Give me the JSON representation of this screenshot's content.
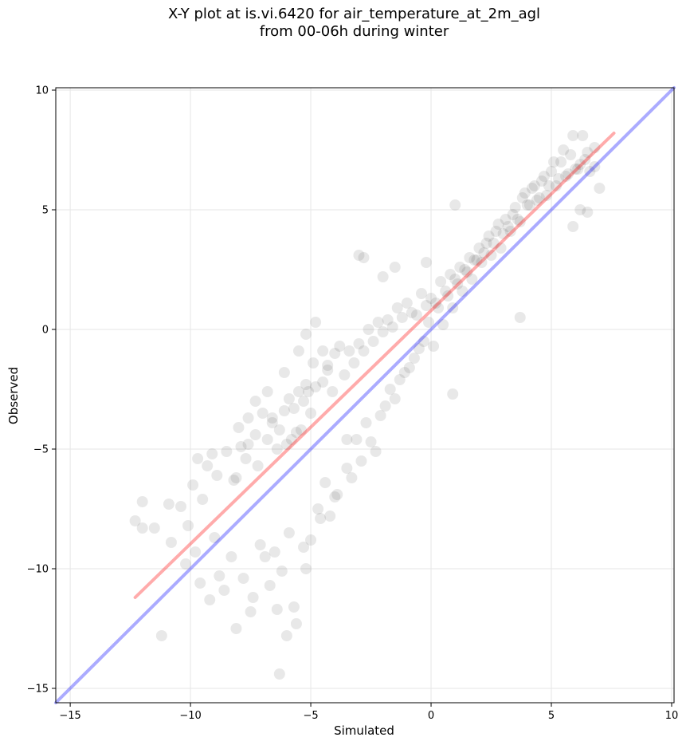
{
  "chart_data": {
    "type": "scatter",
    "title": "X-Y plot at is.vi.6420 for air_temperature_at_2m_agl",
    "subtitle": "from 00-06h during winter",
    "xlabel": "Simulated",
    "ylabel": "Observed",
    "xlim": [
      -15.6,
      10.1
    ],
    "ylim": [
      -15.6,
      10.1
    ],
    "xticks": [
      -15,
      -10,
      -5,
      0,
      5,
      10
    ],
    "yticks": [
      -15,
      -10,
      -5,
      0,
      5,
      10
    ],
    "xtick_labels": [
      "−15",
      "−10",
      "−5",
      "0",
      "5",
      "10"
    ],
    "ytick_labels": [
      "−15",
      "−10",
      "−5",
      "0",
      "5",
      "10"
    ],
    "grid": true,
    "colors": {
      "points": "#000000",
      "fit_line": "#ff0000",
      "identity_line": "#0000ff"
    },
    "fit_line": {
      "x": [
        -12.3,
        7.6
      ],
      "y": [
        -11.2,
        8.2
      ]
    },
    "identity_line": {
      "x": [
        -15.6,
        10.1
      ],
      "y": [
        -15.6,
        10.1
      ]
    },
    "series": [
      {
        "x": [
          -12.3,
          -12,
          -12,
          -11.2,
          -10.9,
          -10.4,
          -10.1,
          -9.9,
          -9.7,
          -9.5,
          -9.3,
          -9.1,
          -8.9,
          -8.5,
          -8.2,
          -8,
          -7.9,
          -7.7,
          -7.6,
          -7.3,
          -7.2,
          -7,
          -6.8,
          -6.6,
          -6.4,
          -6.3,
          -6.1,
          -6,
          -5.9,
          -5.8,
          -5.7,
          -5.6,
          -5.5,
          -5.4,
          -5.3,
          -5.2,
          -5.1,
          -5,
          -4.9,
          -4.8,
          -4.5,
          -4.3,
          -4.1,
          -4,
          -3.8,
          -3.6,
          -3.4,
          -3.2,
          -3,
          -2.8,
          -2.6,
          -2.4,
          -2.2,
          -2,
          -1.8,
          -1.6,
          -1.4,
          -1.2,
          -1,
          -0.8,
          -0.6,
          -0.4,
          -0.2,
          0,
          0.2,
          0.4,
          0.6,
          0.8,
          1,
          1.2,
          1.4,
          1.6,
          1.8,
          2,
          2.2,
          2.4,
          2.6,
          2.8,
          3,
          3.2,
          3.4,
          3.6,
          3.8,
          4,
          4.2,
          4.4,
          4.6,
          4.8,
          5,
          5.2,
          5.4,
          5.6,
          5.8,
          6,
          6.2,
          6.4,
          6.6,
          6.8,
          7,
          -11.5,
          -10.8,
          -10.2,
          -9.6,
          -9,
          -8.6,
          -8.3,
          -7.8,
          -7.4,
          -7.1,
          -6.7,
          -6.5,
          -6.2,
          -5.9,
          -5.7,
          -5.3,
          -5,
          -4.7,
          -4.4,
          -4.2,
          -3.9,
          -3.5,
          -3.1,
          -2.7,
          -2.3,
          -1.9,
          -1.5,
          -1.1,
          -0.7,
          -0.3,
          0.1,
          0.5,
          0.9,
          1.3,
          1.7,
          2.1,
          2.5,
          2.9,
          3.3,
          3.7,
          4.1,
          4.5,
          4.9,
          5.3,
          5.7,
          6.1,
          6.5,
          -9.8,
          -9.2,
          -8.8,
          -8.1,
          -7.5,
          -6.9,
          -6.4,
          -6,
          -5.6,
          -5.2,
          -4.6,
          -4,
          -3.3,
          -2.9,
          -2.5,
          -2.1,
          -1.7,
          -1.3,
          -0.9,
          -0.5,
          -0.1,
          0.3,
          0.7,
          1.1,
          1.5,
          1.9,
          2.3,
          2.7,
          3.1,
          3.5,
          3.9,
          4.3,
          4.7,
          5.1,
          5.5,
          5.9,
          6.3,
          -6.3,
          -8.1,
          -7.6,
          -7.3,
          -6.8,
          -6.6,
          -6.1,
          -5.5,
          -5.2,
          -4.8,
          -4.5,
          -4.3,
          -2.8,
          -3,
          0.9,
          -0.2,
          3.7,
          5.9,
          6.2,
          6.5,
          1,
          -1.5,
          -2,
          -3.5,
          6.8
        ],
        "y": [
          -8,
          -7.2,
          -8.3,
          -12.8,
          -7.3,
          -7.4,
          -8.2,
          -6.5,
          -5.4,
          -7.1,
          -5.7,
          -5.2,
          -6.1,
          -5.1,
          -6.3,
          -4.1,
          -4.9,
          -5.4,
          -3.7,
          -4.4,
          -5.7,
          -3.5,
          -4.6,
          -3.9,
          -5,
          -4.2,
          -3.4,
          -4.8,
          -2.9,
          -4.6,
          -3.3,
          -4.3,
          -2.6,
          -4.2,
          -3,
          -2.3,
          -2.6,
          -3.5,
          -1.4,
          -2.4,
          -2.2,
          -1.5,
          -2.6,
          -1,
          -0.7,
          -1.9,
          -0.9,
          -1.4,
          -0.6,
          -0.9,
          0,
          -0.5,
          0.3,
          -0.1,
          0.4,
          0.1,
          0.9,
          0.5,
          1.1,
          0.7,
          0.6,
          1.5,
          1,
          1.3,
          1.1,
          2,
          1.6,
          2.3,
          2.1,
          2.6,
          2.5,
          3,
          2.9,
          3.4,
          3.2,
          3.9,
          3.6,
          4.4,
          4,
          4.3,
          4.8,
          4.6,
          5.5,
          5.2,
          5.9,
          5.4,
          6.2,
          5.6,
          6.6,
          6,
          7,
          6.4,
          7.3,
          6.7,
          6.9,
          7.1,
          6.6,
          6.8,
          5.9,
          -8.3,
          -8.9,
          -9.8,
          -10.6,
          -8.7,
          -10.9,
          -9.5,
          -10.4,
          -11.2,
          -9,
          -10.7,
          -9.3,
          -10.1,
          -8.5,
          -11.6,
          -9.1,
          -8.8,
          -7.5,
          -6.4,
          -7.8,
          -6.9,
          -5.8,
          -4.6,
          -3.9,
          -5.1,
          -3.2,
          -2.9,
          -1.8,
          -1.2,
          -0.5,
          -0.7,
          0.2,
          0.9,
          1.6,
          2.1,
          2.8,
          3.1,
          3.4,
          4.1,
          4.5,
          5.2,
          5.5,
          6,
          6.3,
          6.5,
          6.7,
          7.4,
          -9.3,
          -11.3,
          -10.3,
          -12.5,
          -11.8,
          -9.5,
          -11.7,
          -12.8,
          -12.3,
          -10,
          -7.9,
          -7,
          -6.2,
          -5.5,
          -4.7,
          -3.6,
          -2.5,
          -2.1,
          -1.6,
          -0.8,
          0.3,
          0.9,
          1.4,
          1.9,
          2.4,
          2.9,
          3.6,
          4.1,
          4.6,
          5.1,
          5.7,
          6,
          6.4,
          7,
          7.5,
          8.1,
          8.1,
          -14.4,
          -6.2,
          -4.8,
          -3,
          -2.6,
          -3.7,
          -1.8,
          -0.9,
          -0.2,
          0.3,
          -0.9,
          -1.7,
          3,
          3.1,
          -2.7,
          2.8,
          0.5,
          4.3,
          5,
          4.9,
          5.2,
          2.6,
          2.2,
          -4.6,
          7.6
        ]
      }
    ]
  }
}
